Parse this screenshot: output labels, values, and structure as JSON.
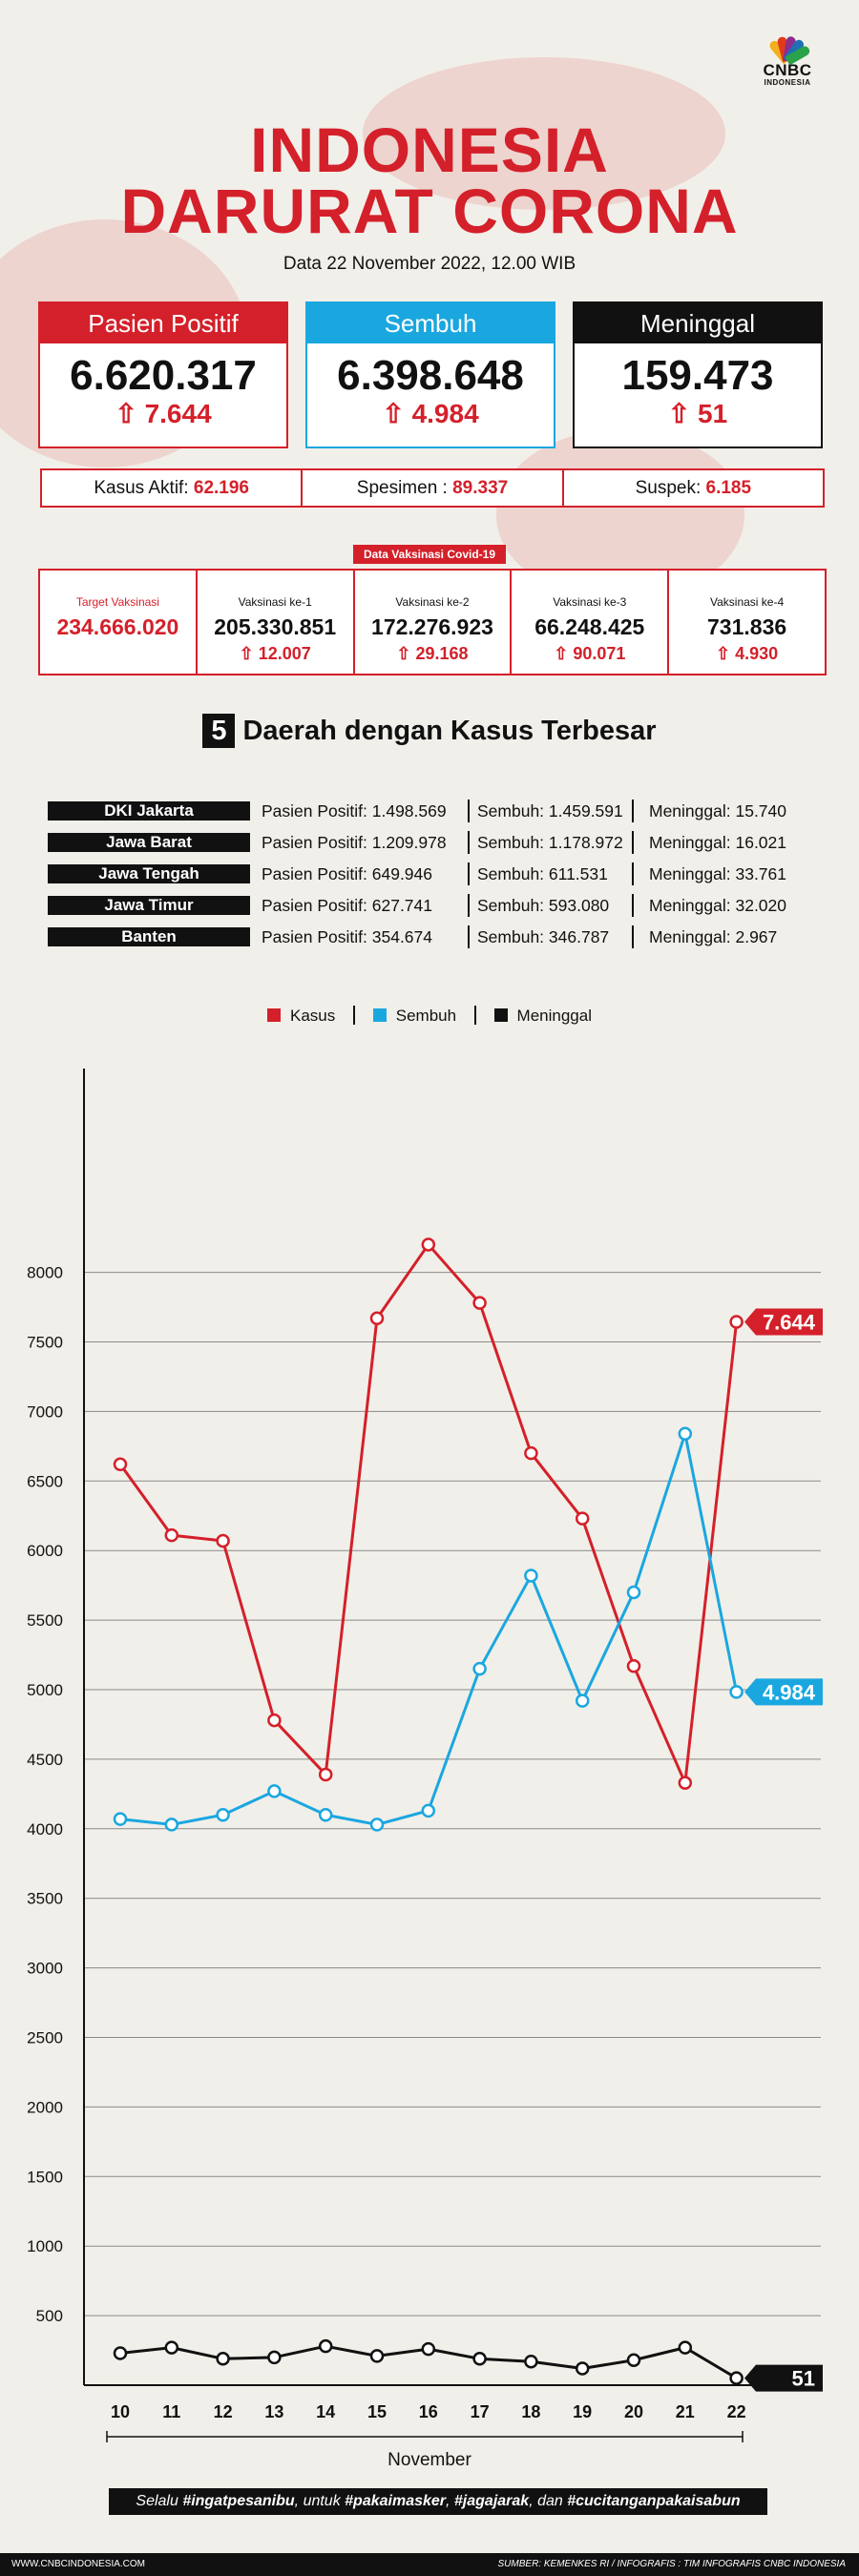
{
  "brand": {
    "line1": "CNBC",
    "line2": "INDONESIA"
  },
  "title": {
    "line1": "INDONESIA",
    "line2": "DARURAT CORONA"
  },
  "date": "Data 22 November 2022, 12.00 WIB",
  "stats": [
    {
      "label": "Pasien Positif",
      "value": "6.620.317",
      "delta": "7.644",
      "color": "#d4202a"
    },
    {
      "label": "Sembuh",
      "value": "6.398.648",
      "delta": "4.984",
      "color": "#1aa7e0"
    },
    {
      "label": "Meninggal",
      "value": "159.473",
      "delta": "51",
      "color": "#111111"
    }
  ],
  "info": [
    {
      "label": "Kasus Aktif: ",
      "value": "62.196"
    },
    {
      "label": "Spesimen : ",
      "value": "89.337"
    },
    {
      "label": "Suspek: ",
      "value": "6.185"
    }
  ],
  "vaccine": {
    "title": "Data Vaksinasi Covid-19",
    "items": [
      {
        "label": "Target Vaksinasi",
        "value": "234.666.020",
        "delta": ""
      },
      {
        "label": "Vaksinasi ke-1",
        "value": "205.330.851",
        "delta": "12.007"
      },
      {
        "label": "Vaksinasi ke-2",
        "value": "172.276.923",
        "delta": "29.168"
      },
      {
        "label": "Vaksinasi ke-3",
        "value": "66.248.425",
        "delta": "90.071"
      },
      {
        "label": "Vaksinasi ke-4",
        "value": "731.836",
        "delta": "4.930"
      }
    ]
  },
  "regions": {
    "number": "5",
    "heading": "Daerah dengan Kasus Terbesar",
    "rows": [
      {
        "name": "DKI Jakarta",
        "positif": "Pasien Positif: 1.498.569",
        "sembuh": "Sembuh: 1.459.591",
        "meninggal": "Meninggal: 15.740"
      },
      {
        "name": "Jawa Barat",
        "positif": "Pasien Positif: 1.209.978",
        "sembuh": "Sembuh: 1.178.972",
        "meninggal": "Meninggal: 16.021"
      },
      {
        "name": "Jawa Tengah",
        "positif": "Pasien Positif: 649.946",
        "sembuh": "Sembuh: 611.531",
        "meninggal": "Meninggal: 33.761"
      },
      {
        "name": "Jawa Timur",
        "positif": "Pasien Positif: 627.741",
        "sembuh": "Sembuh: 593.080",
        "meninggal": "Meninggal: 32.020"
      },
      {
        "name": "Banten",
        "positif": "Pasien Positif: 354.674",
        "sembuh": "Sembuh: 346.787",
        "meninggal": "Meninggal: 2.967"
      }
    ]
  },
  "chart_data": {
    "type": "line",
    "x": [
      10,
      11,
      12,
      13,
      14,
      15,
      16,
      17,
      18,
      19,
      20,
      21,
      22
    ],
    "xlabel": "November",
    "ylabel": "",
    "ylim": [
      0,
      8200
    ],
    "yticks": [
      500,
      1000,
      1500,
      2000,
      2500,
      3000,
      3500,
      4000,
      4500,
      5000,
      5500,
      6000,
      6500,
      7000,
      7500,
      8000
    ],
    "grid": true,
    "legend": "top-center",
    "series": [
      {
        "name": "Kasus",
        "color": "#d4202a",
        "values": [
          6620,
          6110,
          6070,
          4780,
          4390,
          7670,
          8200,
          7780,
          6700,
          6230,
          5170,
          4330,
          7644
        ],
        "end_label": "7.644"
      },
      {
        "name": "Sembuh",
        "color": "#1aa7e0",
        "values": [
          4070,
          4030,
          4100,
          4270,
          4100,
          4030,
          4130,
          5150,
          5820,
          4920,
          5700,
          6840,
          4984
        ],
        "end_label": "4.984"
      },
      {
        "name": "Meninggal",
        "color": "#111111",
        "values": [
          230,
          270,
          190,
          200,
          280,
          210,
          260,
          190,
          170,
          120,
          180,
          270,
          51
        ],
        "end_label": "51"
      }
    ]
  },
  "slogan": {
    "p1": "Selalu ",
    "b1": "#ingatpesanibu",
    "p2": ", untuk ",
    "b2": "#pakaimasker",
    "p3": ", ",
    "b3": "#jagajarak",
    "p4": ", dan ",
    "b4": "#cucitanganpakaisabun"
  },
  "footer": {
    "left": "WWW.CNBCINDONESIA.COM",
    "right": "SUMBER: KEMENKES RI / INFOGRAFIS : TIM INFOGRAFIS CNBC INDONESIA"
  }
}
